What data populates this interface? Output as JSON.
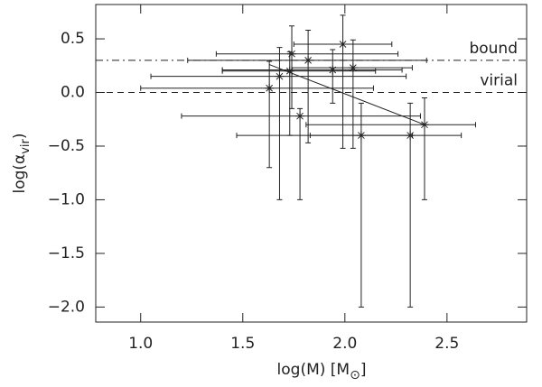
{
  "chart_data": {
    "type": "scatter",
    "x_label": [
      "log(M) [M",
      "⊙",
      "]"
    ],
    "y_label": [
      "log(α",
      "vir",
      ")"
    ],
    "x": [
      1.63,
      1.68,
      1.73,
      1.74,
      1.82,
      1.94,
      1.99,
      2.04,
      1.78,
      2.08,
      2.32,
      2.39
    ],
    "values": [
      0.04,
      0.15,
      0.2,
      0.36,
      0.3,
      0.21,
      0.45,
      0.23,
      -0.22,
      -0.4,
      -0.4,
      -0.3
    ],
    "x_low": [
      1.0,
      1.05,
      1.4,
      1.37,
      1.23,
      1.4,
      1.75,
      1.74,
      1.2,
      1.83,
      1.47,
      1.81
    ],
    "x_high": [
      2.14,
      2.3,
      2.15,
      2.26,
      2.4,
      2.28,
      2.23,
      2.33,
      2.37,
      2.33,
      2.57,
      2.64
    ],
    "y_low": [
      -0.7,
      -1.0,
      -0.4,
      -0.15,
      -0.47,
      -0.1,
      -0.52,
      -0.52,
      -1.0,
      -2.0,
      -2.0,
      -1.0
    ],
    "y_high": [
      0.29,
      0.42,
      0.38,
      0.62,
      0.58,
      0.4,
      0.72,
      0.49,
      -0.15,
      -0.1,
      -0.1,
      -0.05
    ],
    "color": "#000000",
    "fit": {
      "x": [
        1.63,
        2.39
      ],
      "y": [
        0.26,
        -0.3
      ]
    },
    "hlines": [
      {
        "y": 0.3,
        "label": "bound",
        "style": "dashdot"
      },
      {
        "y": 0,
        "label": "virial",
        "style": "dashed"
      }
    ],
    "xlim": [
      0.78,
      2.89
    ],
    "ylim": [
      -2.14,
      0.82
    ],
    "xticks": [
      {
        "value": 1,
        "label": "1.0"
      },
      {
        "value": 1.5,
        "label": "1.5"
      },
      {
        "value": 2,
        "label": "2.0"
      },
      {
        "value": 2.5,
        "label": "2.5"
      }
    ],
    "yticks": [
      {
        "value": -2,
        "label": "−2.0"
      },
      {
        "value": -1.5,
        "label": "−1.5"
      },
      {
        "value": -1,
        "label": "−1.0"
      },
      {
        "value": -0.5,
        "label": "−0.5"
      },
      {
        "value": 0,
        "label": "0.0"
      },
      {
        "value": 0.5,
        "label": "0.5"
      }
    ]
  }
}
